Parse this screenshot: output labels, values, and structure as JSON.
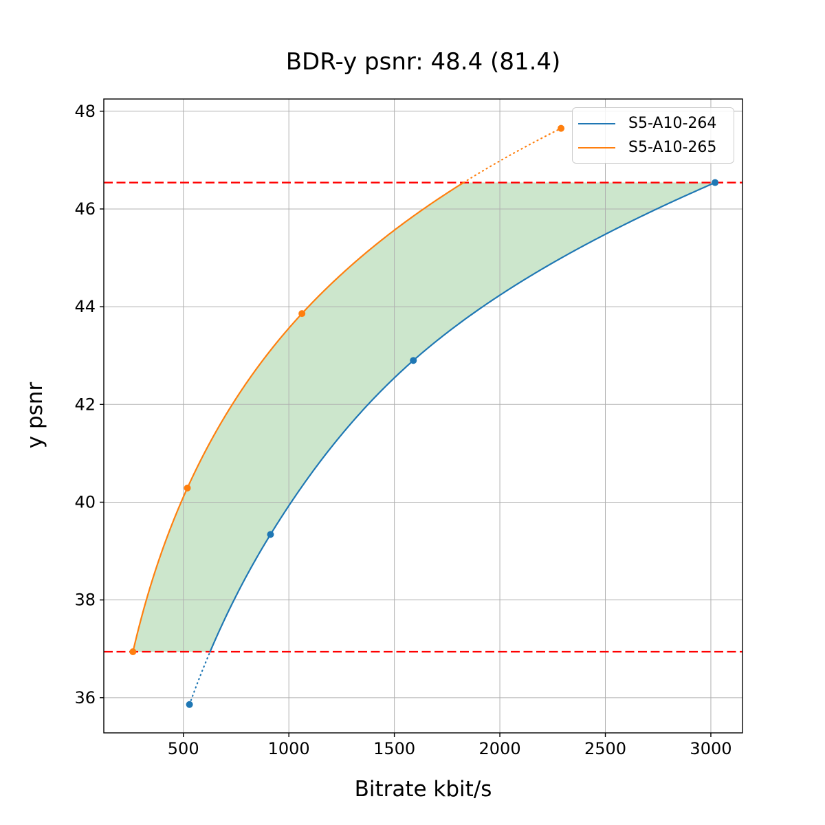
{
  "figure": {
    "background": "#ffffff"
  },
  "chart_data": {
    "type": "line",
    "title": "BDR-y psnr: 48.4 (81.4)",
    "xlabel": "Bitrate kbit/s",
    "ylabel": "y psnr",
    "xlim": [
      123,
      3150
    ],
    "ylim": [
      35.28,
      48.25
    ],
    "xticks": [
      500,
      1000,
      1500,
      2000,
      2500,
      3000
    ],
    "yticks": [
      36,
      38,
      40,
      42,
      44,
      46,
      48
    ],
    "grid": true,
    "grid_color": "#b0b0b0",
    "axes_color": "#000000",
    "legend_position": "upper-right",
    "series": [
      {
        "name": "S5-A10-264",
        "color": "#1f77b4",
        "x": [
          529,
          913,
          1590,
          3020
        ],
        "y": [
          35.86,
          39.34,
          42.9,
          46.54
        ]
      },
      {
        "name": "S5-A10-265",
        "color": "#ff7f0e",
        "x": [
          261,
          519,
          1062,
          2290
        ],
        "y": [
          36.94,
          40.29,
          43.86,
          47.65
        ]
      }
    ],
    "overlap_lines": {
      "y_low": 36.94,
      "y_high": 46.54,
      "color": "#ff0000",
      "style": "dashed"
    },
    "fill_between": {
      "color": "#008000",
      "alpha": 0.2
    },
    "interpolation": "pchip-log-x",
    "out_of_range_style": "dotted"
  }
}
